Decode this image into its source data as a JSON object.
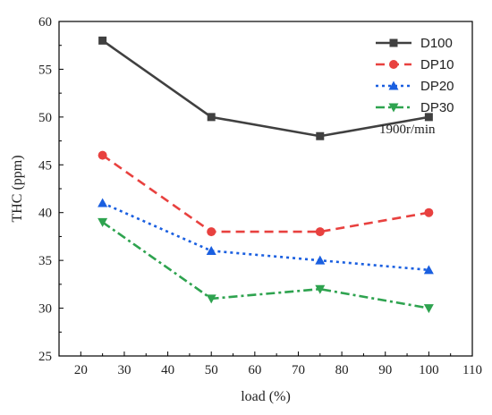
{
  "chart_data": {
    "type": "line",
    "title": "",
    "xlabel": "load (%)",
    "ylabel": "THC (ppm)",
    "xlim": [
      15,
      110
    ],
    "ylim": [
      25,
      60
    ],
    "xticks": [
      20,
      30,
      40,
      50,
      60,
      70,
      80,
      90,
      100,
      110
    ],
    "yticks": [
      25,
      30,
      35,
      40,
      45,
      50,
      55,
      60
    ],
    "grid": false,
    "legend_position": "top-right",
    "annotation": "1900r/min",
    "x": [
      25,
      50,
      75,
      100
    ],
    "series": [
      {
        "name": "D100",
        "values": [
          58,
          50,
          48,
          50
        ],
        "color": "#404040",
        "marker": "square",
        "line_style": "solid"
      },
      {
        "name": "DP10",
        "values": [
          46,
          38,
          38,
          40
        ],
        "color": "#e8413f",
        "marker": "circle",
        "line_style": "dashed"
      },
      {
        "name": "DP20",
        "values": [
          41,
          36,
          35,
          34
        ],
        "color": "#1a5fe0",
        "marker": "triangle-up",
        "line_style": "dotted"
      },
      {
        "name": "DP30",
        "values": [
          39,
          31,
          32,
          30
        ],
        "color": "#2ea34f",
        "marker": "triangle-down",
        "line_style": "dashdot"
      }
    ]
  }
}
